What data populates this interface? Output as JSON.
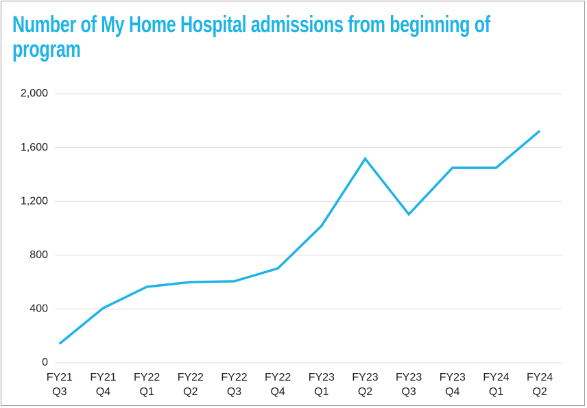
{
  "chart_data": {
    "type": "line",
    "title": "Number of My Home Hospital admissions from beginning of program",
    "categories": [
      "FY21 Q3",
      "FY21 Q4",
      "FY22 Q1",
      "FY22 Q2",
      "FY22 Q3",
      "FY22 Q4",
      "FY23 Q1",
      "FY23 Q2",
      "FY23 Q3",
      "FY23 Q4",
      "FY24 Q1",
      "FY24 Q2"
    ],
    "values": [
      142,
      407,
      565,
      600,
      606,
      702,
      1018,
      1517,
      1104,
      1450,
      1450,
      1725
    ],
    "color": "#1eb4e6",
    "ylim": [
      0,
      2000
    ],
    "yticks": [
      0,
      400,
      800,
      {
        "value": 1200,
        "label": "1,200"
      },
      {
        "value": 1600,
        "label": "1,600"
      },
      {
        "value": 2000,
        "label": "2,000"
      }
    ],
    "grid": true
  }
}
